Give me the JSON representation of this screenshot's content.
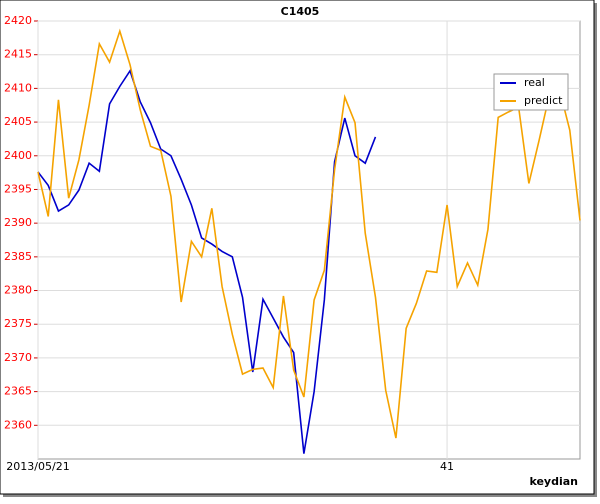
{
  "chart_data": {
    "type": "line",
    "title": "C1405",
    "x_label": "keydian",
    "categories": [
      "2013/05/21",
      null,
      null,
      null,
      null,
      null,
      null,
      null,
      null,
      null,
      null,
      null,
      null,
      null,
      null,
      null,
      null,
      null,
      null,
      null,
      null,
      null,
      null,
      null,
      null,
      null,
      null,
      null,
      null,
      null,
      null,
      null,
      null,
      null,
      null,
      null,
      null,
      null,
      null,
      null,
      "41",
      null,
      null,
      null,
      null,
      null,
      null,
      null,
      null,
      null,
      null,
      null,
      null,
      null
    ],
    "series": [
      {
        "name": "real",
        "color": "#0000cc",
        "values": [
          2397.6,
          2395.6,
          2391.8,
          2392.7,
          2394.9,
          2398.9,
          2397.7,
          2407.7,
          2410.3,
          2412.6,
          2408,
          2404.9,
          2401,
          2400,
          2396.5,
          2392.7,
          2387.8,
          2386.9,
          2385.8,
          2385,
          2379,
          2367.9,
          2378.7,
          2375.9,
          2373.1,
          2370.8,
          2355.8,
          2365,
          2378.6,
          2399.1,
          2405.6,
          2400,
          2398.9,
          2402.8,
          null,
          null,
          null,
          null,
          null,
          null,
          null,
          null,
          null,
          null,
          null,
          null,
          null,
          null,
          null,
          null,
          null,
          null,
          null,
          null
        ]
      },
      {
        "name": "predict",
        "color": "#f5a300",
        "values": [
          2397.6,
          2391,
          2408.3,
          2393.7,
          2399.4,
          2407.5,
          2416.6,
          2413.9,
          2418.5,
          2413.5,
          2406.8,
          2401.4,
          2400.8,
          2394,
          2378.3,
          2387.3,
          2385,
          2392.2,
          2380.6,
          2373.5,
          2367.6,
          2368.3,
          2368.5,
          2365.6,
          2379.2,
          2368.2,
          2364.2,
          2378.6,
          2383,
          2397.9,
          2408.7,
          2404.9,
          2388.5,
          2379,
          2365.2,
          2358.1,
          2374.4,
          2378.1,
          2382.9,
          2382.7,
          2392.7,
          2380.6,
          2384.1,
          2380.8,
          2389.1,
          2405.7,
          2406.5,
          2407.2,
          2395.9,
          2402.3,
          2409,
          2409.8,
          2403.8,
          2390.4
        ]
      }
    ],
    "ylim": [
      2355,
      2420
    ],
    "yticks": [
      2360,
      2365,
      2370,
      2375,
      2380,
      2385,
      2390,
      2395,
      2400,
      2405,
      2410,
      2415,
      2420
    ],
    "grid": true,
    "legend": "top-right",
    "ytick_color": "#ff0000"
  }
}
